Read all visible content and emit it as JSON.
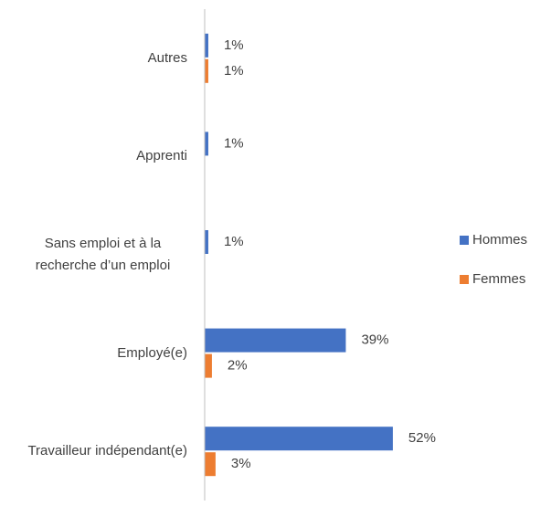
{
  "chart_data": {
    "type": "bar",
    "orientation": "horizontal",
    "categories": [
      "Autres",
      "Apprenti",
      "Sans emploi et à la recherche d’un emploi",
      "Employé(e)",
      "Travailleur indépendant(e)"
    ],
    "series": [
      {
        "name": "Hommes",
        "color": "#4472c4",
        "values": [
          1,
          1,
          1,
          39,
          52
        ],
        "value_labels": [
          "1%",
          "1%",
          "1%",
          "39%",
          "52%"
        ]
      },
      {
        "name": "Femmes",
        "color": "#ed7d31",
        "values": [
          1,
          null,
          null,
          2,
          3
        ],
        "value_labels": [
          "1%",
          null,
          null,
          "2%",
          "3%"
        ]
      }
    ],
    "legend": "right"
  }
}
